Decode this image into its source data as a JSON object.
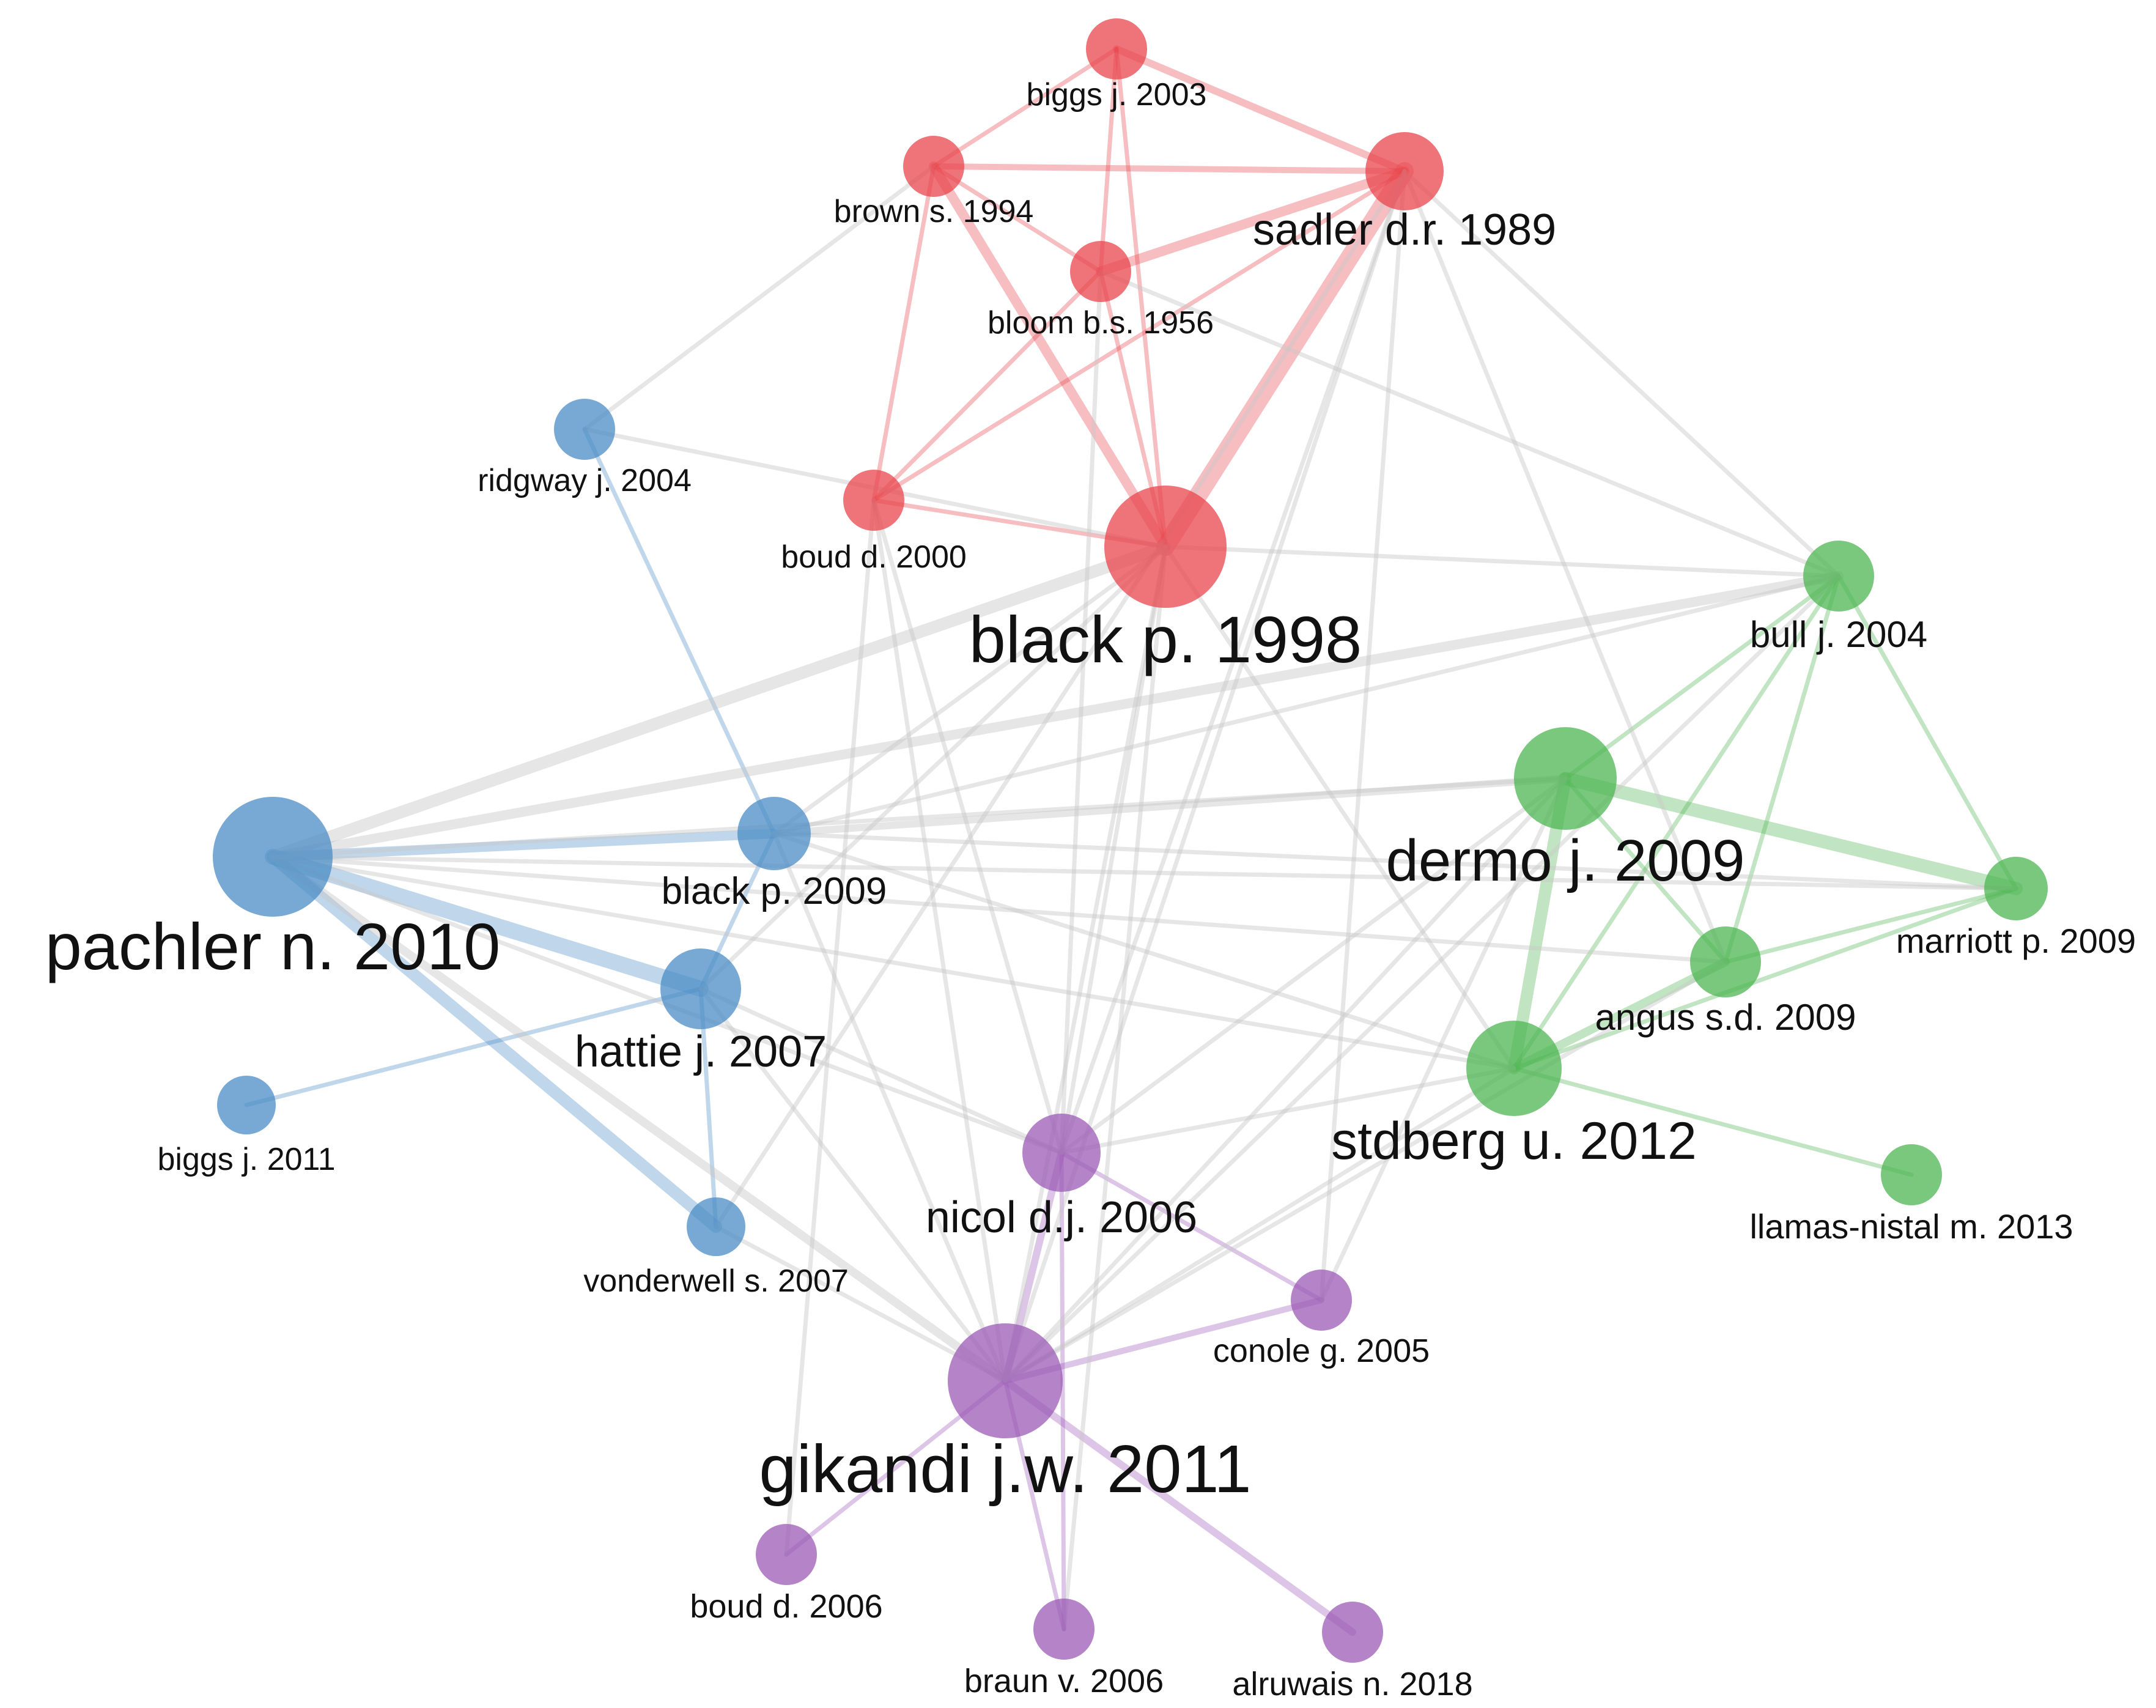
{
  "colors": {
    "red": "#e8464c",
    "blue": "#4a8cc6",
    "green": "#4eb551",
    "purple": "#9b59b6",
    "grey_edge": "#c8c8c8"
  },
  "nodes": [
    {
      "id": "biggs2003",
      "label": "biggs j. 2003",
      "cluster": "red"
    },
    {
      "id": "brown1994",
      "label": "brown s. 1994",
      "cluster": "red"
    },
    {
      "id": "sadler1989",
      "label": "sadler d.r. 1989",
      "cluster": "red"
    },
    {
      "id": "bloom1956",
      "label": "bloom b.s. 1956",
      "cluster": "red"
    },
    {
      "id": "boud2000",
      "label": "boud d. 2000",
      "cluster": "red"
    },
    {
      "id": "black1998",
      "label": "black p. 1998",
      "cluster": "red"
    },
    {
      "id": "ridgway2004",
      "label": "ridgway j. 2004",
      "cluster": "blue"
    },
    {
      "id": "pachler2010",
      "label": "pachler n. 2010",
      "cluster": "blue"
    },
    {
      "id": "black2009",
      "label": "black p. 2009",
      "cluster": "blue"
    },
    {
      "id": "hattie2007",
      "label": "hattie j. 2007",
      "cluster": "blue"
    },
    {
      "id": "biggs2011",
      "label": "biggs j. 2011",
      "cluster": "blue"
    },
    {
      "id": "vonderwell2007",
      "label": "vonderwell s. 2007",
      "cluster": "blue"
    },
    {
      "id": "bull2004",
      "label": "bull j. 2004",
      "cluster": "green"
    },
    {
      "id": "dermo2009",
      "label": "dermo j. 2009",
      "cluster": "green"
    },
    {
      "id": "marriott2009",
      "label": "marriott p. 2009",
      "cluster": "green"
    },
    {
      "id": "angus2009",
      "label": "angus s.d. 2009",
      "cluster": "green"
    },
    {
      "id": "stdberg2012",
      "label": "stdberg u. 2012",
      "cluster": "green"
    },
    {
      "id": "llamas2013",
      "label": "llamas-nistal m. 2013",
      "cluster": "green"
    },
    {
      "id": "nicol2006",
      "label": "nicol d.j. 2006",
      "cluster": "purple"
    },
    {
      "id": "conole2005",
      "label": "conole g. 2005",
      "cluster": "purple"
    },
    {
      "id": "gikandi2011",
      "label": "gikandi j.w. 2011",
      "cluster": "purple"
    },
    {
      "id": "boud2006",
      "label": "boud d. 2006",
      "cluster": "purple"
    },
    {
      "id": "braun2006",
      "label": "braun v. 2006",
      "cluster": "purple"
    },
    {
      "id": "alruwais2018",
      "label": "alruwais n. 2018",
      "cluster": "purple"
    }
  ],
  "edges": [
    {
      "from": "biggs2003",
      "to": "sadler1989",
      "cluster": "red"
    },
    {
      "from": "biggs2003",
      "to": "brown1994",
      "cluster": "red"
    },
    {
      "from": "biggs2003",
      "to": "bloom1956",
      "cluster": "red"
    },
    {
      "from": "biggs2003",
      "to": "black1998",
      "cluster": "red"
    },
    {
      "from": "brown1994",
      "to": "sadler1989",
      "cluster": "red"
    },
    {
      "from": "brown1994",
      "to": "bloom1956",
      "cluster": "red"
    },
    {
      "from": "brown1994",
      "to": "black1998",
      "cluster": "red"
    },
    {
      "from": "brown1994",
      "to": "boud2000",
      "cluster": "red"
    },
    {
      "from": "bloom1956",
      "to": "sadler1989",
      "cluster": "red"
    },
    {
      "from": "bloom1956",
      "to": "black1998",
      "cluster": "red"
    },
    {
      "from": "bloom1956",
      "to": "boud2000",
      "cluster": "red"
    },
    {
      "from": "sadler1989",
      "to": "black1998",
      "cluster": "red"
    },
    {
      "from": "sadler1989",
      "to": "boud2000",
      "cluster": "red"
    },
    {
      "from": "boud2000",
      "to": "black1998",
      "cluster": "red"
    },
    {
      "from": "ridgway2004",
      "to": "black2009",
      "cluster": "blue"
    },
    {
      "from": "pachler2010",
      "to": "black2009",
      "cluster": "blue"
    },
    {
      "from": "pachler2010",
      "to": "hattie2007",
      "cluster": "blue"
    },
    {
      "from": "pachler2010",
      "to": "vonderwell2007",
      "cluster": "blue"
    },
    {
      "from": "biggs2011",
      "to": "hattie2007",
      "cluster": "blue"
    },
    {
      "from": "hattie2007",
      "to": "vonderwell2007",
      "cluster": "blue"
    },
    {
      "from": "hattie2007",
      "to": "black2009",
      "cluster": "blue"
    },
    {
      "from": "bull2004",
      "to": "dermo2009",
      "cluster": "green"
    },
    {
      "from": "bull2004",
      "to": "marriott2009",
      "cluster": "green"
    },
    {
      "from": "bull2004",
      "to": "angus2009",
      "cluster": "green"
    },
    {
      "from": "bull2004",
      "to": "stdberg2012",
      "cluster": "green"
    },
    {
      "from": "dermo2009",
      "to": "marriott2009",
      "cluster": "green"
    },
    {
      "from": "dermo2009",
      "to": "angus2009",
      "cluster": "green"
    },
    {
      "from": "dermo2009",
      "to": "stdberg2012",
      "cluster": "green"
    },
    {
      "from": "marriott2009",
      "to": "angus2009",
      "cluster": "green"
    },
    {
      "from": "marriott2009",
      "to": "stdberg2012",
      "cluster": "green"
    },
    {
      "from": "angus2009",
      "to": "stdberg2012",
      "cluster": "green"
    },
    {
      "from": "stdberg2012",
      "to": "llamas2013",
      "cluster": "green"
    },
    {
      "from": "nicol2006",
      "to": "gikandi2011",
      "cluster": "purple"
    },
    {
      "from": "nicol2006",
      "to": "conole2005",
      "cluster": "purple"
    },
    {
      "from": "gikandi2011",
      "to": "conole2005",
      "cluster": "purple"
    },
    {
      "from": "gikandi2011",
      "to": "boud2006",
      "cluster": "purple"
    },
    {
      "from": "gikandi2011",
      "to": "braun2006",
      "cluster": "purple"
    },
    {
      "from": "gikandi2011",
      "to": "alruwais2018",
      "cluster": "purple"
    },
    {
      "from": "nicol2006",
      "to": "braun2006",
      "cluster": "purple"
    },
    {
      "from": "pachler2010",
      "to": "black1998",
      "cluster": "grey"
    },
    {
      "from": "pachler2010",
      "to": "bull2004",
      "cluster": "grey"
    },
    {
      "from": "pachler2010",
      "to": "dermo2009",
      "cluster": "grey"
    },
    {
      "from": "pachler2010",
      "to": "marriott2009",
      "cluster": "grey"
    },
    {
      "from": "pachler2010",
      "to": "angus2009",
      "cluster": "grey"
    },
    {
      "from": "pachler2010",
      "to": "stdberg2012",
      "cluster": "grey"
    },
    {
      "from": "pachler2010",
      "to": "gikandi2011",
      "cluster": "grey"
    },
    {
      "from": "pachler2010",
      "to": "nicol2006",
      "cluster": "grey"
    },
    {
      "from": "black1998",
      "to": "gikandi2011",
      "cluster": "grey"
    },
    {
      "from": "black1998",
      "to": "nicol2006",
      "cluster": "grey"
    },
    {
      "from": "black1998",
      "to": "stdberg2012",
      "cluster": "grey"
    },
    {
      "from": "black1998",
      "to": "bull2004",
      "cluster": "grey"
    },
    {
      "from": "black1998",
      "to": "black2009",
      "cluster": "grey"
    },
    {
      "from": "black1998",
      "to": "ridgway2004",
      "cluster": "grey"
    },
    {
      "from": "sadler1989",
      "to": "gikandi2011",
      "cluster": "grey"
    },
    {
      "from": "sadler1989",
      "to": "nicol2006",
      "cluster": "grey"
    },
    {
      "from": "sadler1989",
      "to": "bull2004",
      "cluster": "grey"
    },
    {
      "from": "sadler1989",
      "to": "angus2009",
      "cluster": "grey"
    },
    {
      "from": "sadler1989",
      "to": "conole2005",
      "cluster": "grey"
    },
    {
      "from": "sadler1989",
      "to": "vonderwell2007",
      "cluster": "grey"
    },
    {
      "from": "bloom1956",
      "to": "bull2004",
      "cluster": "grey"
    },
    {
      "from": "bloom1956",
      "to": "nicol2006",
      "cluster": "grey"
    },
    {
      "from": "brown1994",
      "to": "ridgway2004",
      "cluster": "grey"
    },
    {
      "from": "boud2000",
      "to": "gikandi2011",
      "cluster": "grey"
    },
    {
      "from": "boud2000",
      "to": "nicol2006",
      "cluster": "grey"
    },
    {
      "from": "boud2000",
      "to": "boud2006",
      "cluster": "grey"
    },
    {
      "from": "black2009",
      "to": "gikandi2011",
      "cluster": "grey"
    },
    {
      "from": "black2009",
      "to": "stdberg2012",
      "cluster": "grey"
    },
    {
      "from": "black2009",
      "to": "dermo2009",
      "cluster": "grey"
    },
    {
      "from": "black2009",
      "to": "marriott2009",
      "cluster": "grey"
    },
    {
      "from": "black2009",
      "to": "bull2004",
      "cluster": "grey"
    },
    {
      "from": "hattie2007",
      "to": "gikandi2011",
      "cluster": "grey"
    },
    {
      "from": "hattie2007",
      "to": "nicol2006",
      "cluster": "grey"
    },
    {
      "from": "hattie2007",
      "to": "black1998",
      "cluster": "grey"
    },
    {
      "from": "vonderwell2007",
      "to": "gikandi2011",
      "cluster": "grey"
    },
    {
      "from": "nicol2006",
      "to": "stdberg2012",
      "cluster": "grey"
    },
    {
      "from": "nicol2006",
      "to": "dermo2009",
      "cluster": "grey"
    },
    {
      "from": "gikandi2011",
      "to": "stdberg2012",
      "cluster": "grey"
    },
    {
      "from": "gikandi2011",
      "to": "dermo2009",
      "cluster": "grey"
    },
    {
      "from": "gikandi2011",
      "to": "angus2009",
      "cluster": "grey"
    },
    {
      "from": "gikandi2011",
      "to": "bull2004",
      "cluster": "grey"
    },
    {
      "from": "conole2005",
      "to": "dermo2009",
      "cluster": "grey"
    },
    {
      "from": "braun2006",
      "to": "black1998",
      "cluster": "grey"
    }
  ]
}
